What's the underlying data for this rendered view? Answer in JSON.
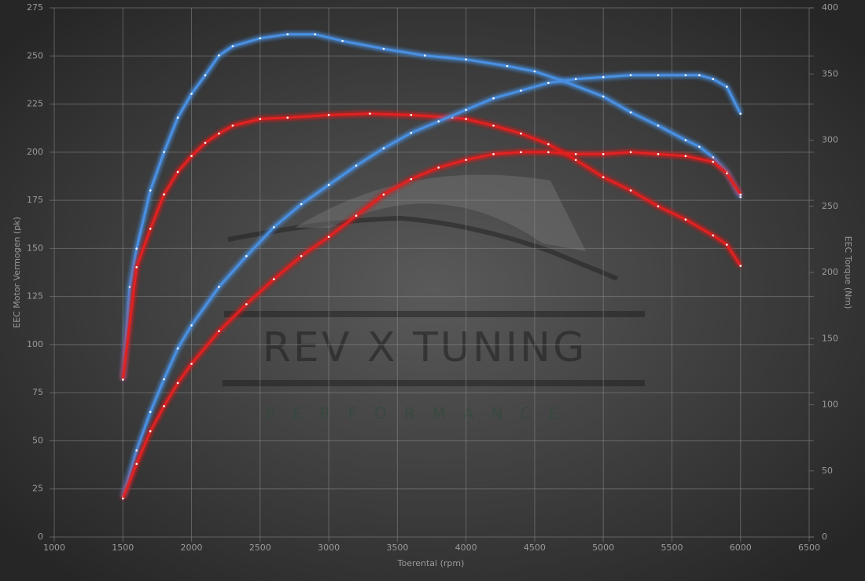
{
  "chart_data": {
    "type": "line",
    "xlabel": "Toerental (rpm)",
    "ylabel": "EEC Motor Vermogen (pk)",
    "y2label": "EEC Torque (Nm)",
    "watermark": "REV X TUNING",
    "watermark_subtitle": "PERFORMANCE",
    "xlim": [
      1000,
      6500
    ],
    "xticks": [
      1000,
      1500,
      2000,
      2500,
      3000,
      3500,
      4000,
      4500,
      5000,
      5500,
      6000,
      6500
    ],
    "ylim": [
      0,
      275
    ],
    "yticks": [
      0,
      25,
      50,
      75,
      100,
      125,
      150,
      175,
      200,
      225,
      250,
      275
    ],
    "y2lim": [
      0,
      400
    ],
    "y2ticks": [
      0,
      50,
      100,
      150,
      200,
      250,
      300,
      350,
      400
    ],
    "grid": true,
    "series": [
      {
        "color": "#4a90e2",
        "axis": "y2",
        "x": [
          1500,
          1550,
          1600,
          1700,
          1800,
          1900,
          2000,
          2100,
          2200,
          2300,
          2500,
          2700,
          2900,
          3100,
          3400,
          3700,
          4000,
          4300,
          4500,
          4700,
          5000,
          5200,
          5400,
          5600,
          5700,
          5800,
          5900,
          6000
        ],
        "values": [
          119,
          189,
          218,
          262,
          291,
          317,
          335,
          349,
          364,
          371,
          377,
          380,
          380,
          375,
          369,
          364,
          361,
          356,
          352,
          345,
          333,
          321,
          311,
          300,
          295,
          287,
          276,
          257
        ]
      },
      {
        "color": "#e02020",
        "axis": "y2",
        "x": [
          1500,
          1600,
          1700,
          1800,
          1900,
          2000,
          2100,
          2200,
          2300,
          2500,
          2700,
          3000,
          3300,
          3600,
          3900,
          4000,
          4200,
          4400,
          4600,
          4800,
          5000,
          5200,
          5400,
          5600,
          5800,
          5900,
          6000
        ],
        "values": [
          119,
          204,
          233,
          259,
          276,
          288,
          298,
          305,
          311,
          316,
          317,
          319,
          320,
          319,
          317,
          316,
          311,
          305,
          297,
          285,
          272,
          262,
          250,
          240,
          228,
          221,
          205
        ]
      },
      {
        "color": "#4a90e2",
        "x": [
          1500,
          1600,
          1700,
          1800,
          1900,
          2000,
          2200,
          2400,
          2600,
          2800,
          3000,
          3200,
          3400,
          3600,
          3800,
          4000,
          4200,
          4400,
          4600,
          4800,
          5000,
          5200,
          5400,
          5600,
          5700,
          5800,
          5900,
          6000
        ],
        "values": [
          21,
          45,
          65,
          82,
          98,
          110,
          130,
          146,
          161,
          173,
          183,
          193,
          202,
          210,
          216,
          222,
          228,
          232,
          236,
          238,
          239,
          240,
          240,
          240,
          240,
          238,
          234,
          220
        ]
      },
      {
        "color": "#e02020",
        "x": [
          1500,
          1600,
          1700,
          1800,
          1900,
          2000,
          2200,
          2400,
          2600,
          2800,
          3000,
          3200,
          3400,
          3600,
          3800,
          4000,
          4200,
          4400,
          4600,
          4800,
          5000,
          5200,
          5400,
          5600,
          5800,
          5900,
          6000
        ],
        "values": [
          20,
          38,
          55,
          68,
          80,
          90,
          107,
          121,
          134,
          146,
          156,
          167,
          178,
          186,
          192,
          196,
          199,
          200,
          200,
          199,
          199,
          200,
          199,
          198,
          195,
          189,
          178
        ]
      }
    ]
  }
}
